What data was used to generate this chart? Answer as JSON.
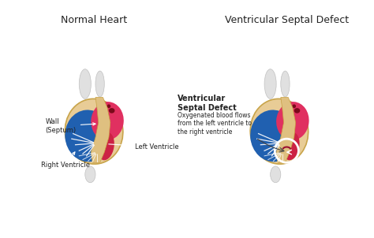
{
  "bg_color": "#ffffff",
  "title_left": "Normal Heart",
  "title_right": "Ventricular Septal Defect",
  "label_wall": "Wall\n(Septum)",
  "label_right_ventricle": "Right Ventricle",
  "label_left_ventricle": "Left Ventricle",
  "label_vsd": "Ventricular\nSeptal Defect",
  "label_vsd_desc": "Oxygenated blood flows\nfrom the left ventricle to\nthe right ventricle",
  "heart_outline_color": "#e8cc96",
  "blue_color": "#2060b0",
  "blue_dark": "#1a4e96",
  "red_color": "#cc2244",
  "red_bright": "#e03060",
  "dark_red_color": "#7a0a1a",
  "septum_color": "#dfc080",
  "white_color": "#ffffff",
  "gray_light": "#d8d8d8",
  "gray_tube": "#c8c8c8",
  "text_color": "#222222",
  "arrow_color": "#444444",
  "title_fontsize": 9,
  "label_fontsize": 6
}
